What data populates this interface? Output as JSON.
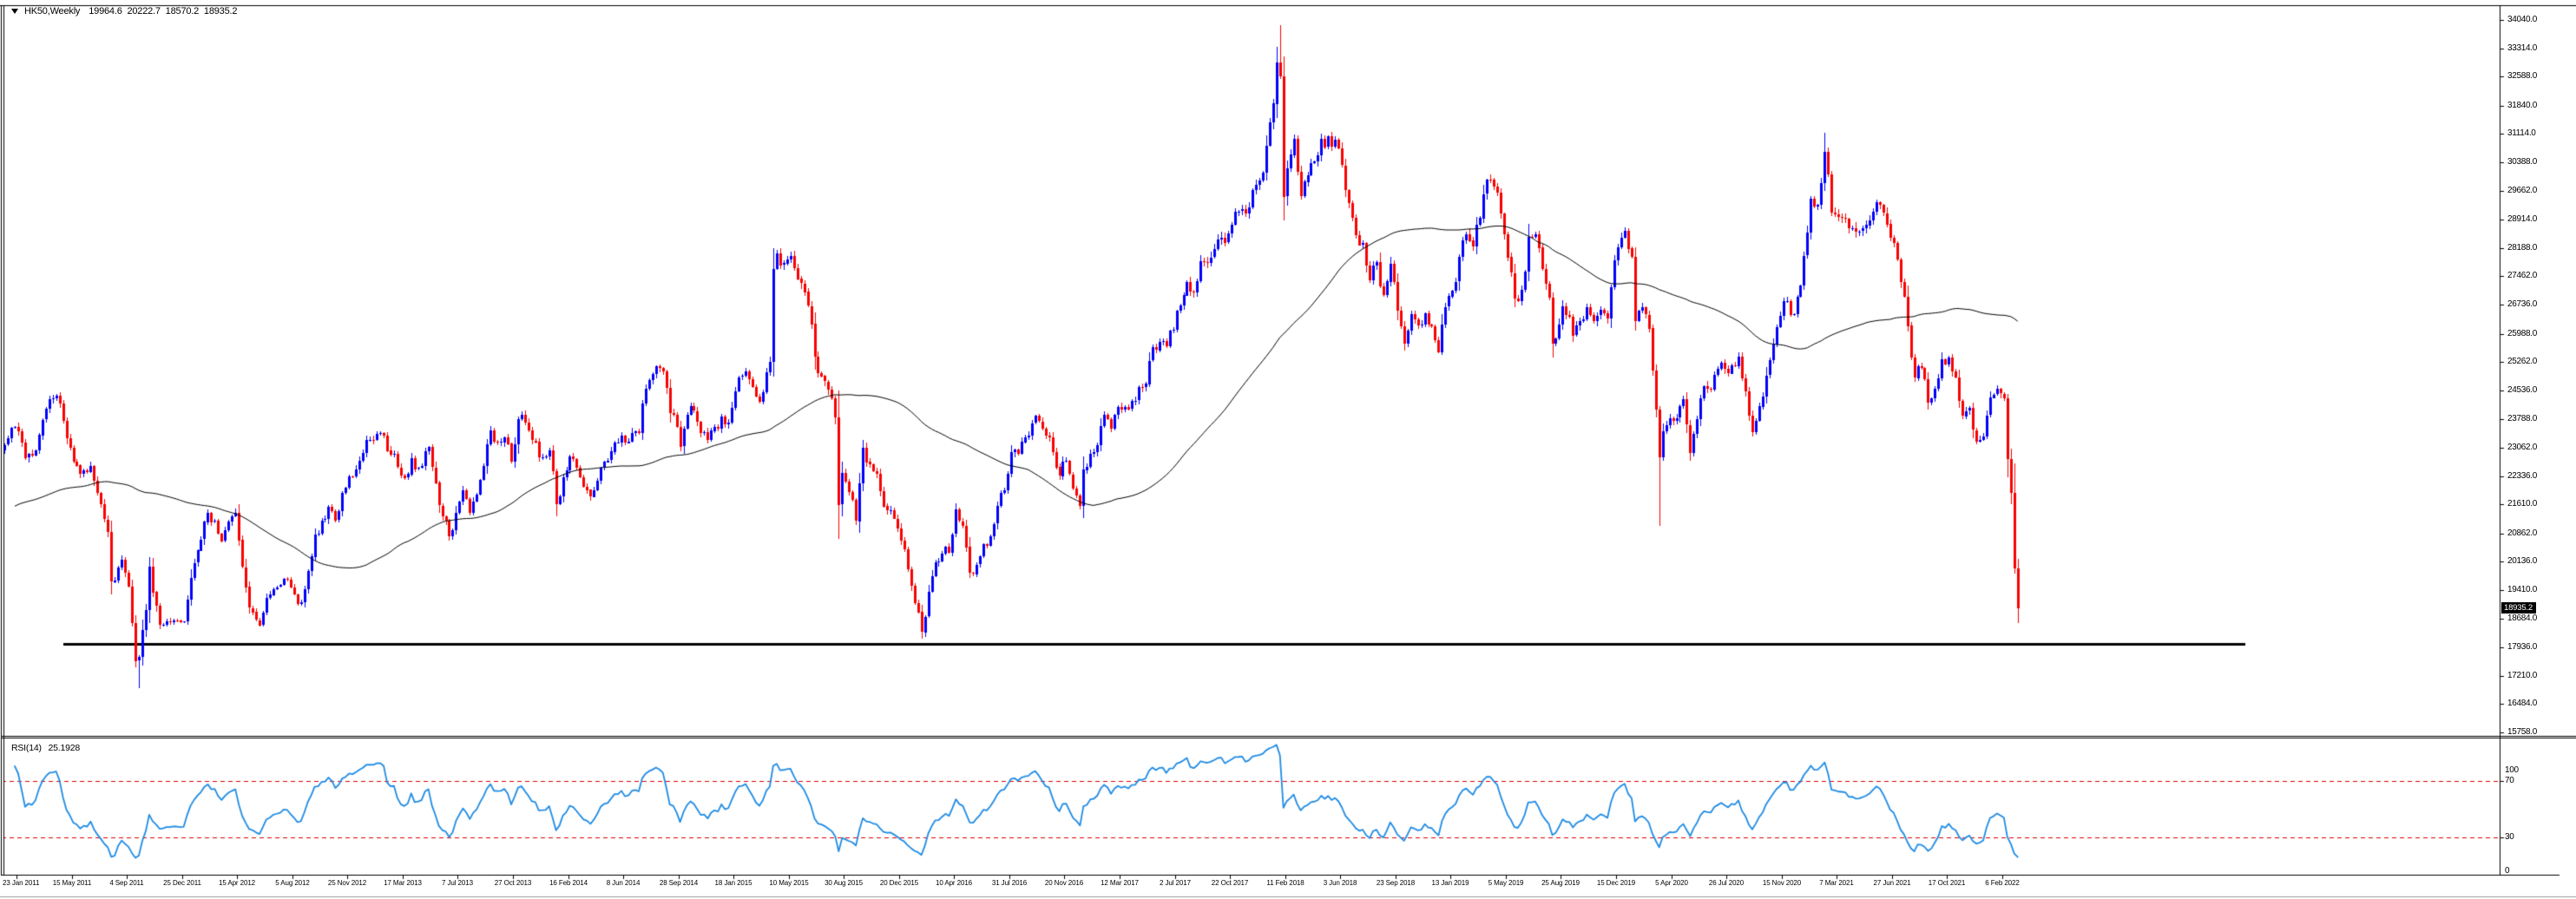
{
  "window": {
    "symbol": "HK50,Weekly",
    "ohlc": "19964.6 20222.7 18570.2 18935.2"
  },
  "price_axis": {
    "labels": [
      "34040.0",
      "33314.0",
      "32588.0",
      "31840.0",
      "31114.0",
      "30388.0",
      "29662.0",
      "28914.0",
      "28188.0",
      "27462.0",
      "26736.0",
      "25988.0",
      "25262.0",
      "24536.0",
      "23788.0",
      "23062.0",
      "22336.0",
      "21610.0",
      "20862.0",
      "20136.0",
      "19410.0",
      "18684.0",
      "17936.0",
      "17210.0",
      "16484.0",
      "15758.0"
    ],
    "current_price": "18935.2"
  },
  "time_axis": {
    "labels": [
      "23 Jan 2011",
      "15 May 2011",
      "4 Sep 2011",
      "25 Dec 2011",
      "15 Apr 2012",
      "5 Aug 2012",
      "25 Nov 2012",
      "17 Mar 2013",
      "7 Jul 2013",
      "27 Oct 2013",
      "16 Feb 2014",
      "8 Jun 2014",
      "28 Sep 2014",
      "18 Jan 2015",
      "10 May 2015",
      "30 Aug 2015",
      "20 Dec 2015",
      "10 Apr 2016",
      "31 Jul 2016",
      "20 Nov 2016",
      "12 Mar 2017",
      "2 Jul 2017",
      "22 Oct 2017",
      "11 Feb 2018",
      "3 Jun 2018",
      "23 Sep 2018",
      "13 Jan 2019",
      "5 May 2019",
      "25 Aug 2019",
      "15 Dec 2019",
      "5 Apr 2020",
      "26 Jul 2020",
      "15 Nov 2020",
      "7 Mar 2021",
      "27 Jun 2021",
      "17 Oct 2021",
      "6 Feb 2022"
    ]
  },
  "rsi_pane": {
    "label": "RSI(14)",
    "value": "25.1928",
    "scale_labels": [
      "100",
      "70",
      "30",
      "0"
    ]
  },
  "chart_data": {
    "type": "candlestick",
    "title": "HK50,Weekly 19964.6 20222.7 18570.2 18935.2",
    "instrument": "HK50",
    "timeframe": "Weekly",
    "x_axis": {
      "bar_interval": "1 week",
      "week0_date": "23 Jan 2011",
      "last_week_index": 581,
      "tick_every_weeks": 16,
      "tick_labels": [
        "23 Jan 2011",
        "15 May 2011",
        "4 Sep 2011",
        "25 Dec 2011",
        "15 Apr 2012",
        "5 Aug 2012",
        "25 Nov 2012",
        "17 Mar 2013",
        "7 Jul 2013",
        "27 Oct 2013",
        "16 Feb 2014",
        "8 Jun 2014",
        "28 Sep 2014",
        "18 Jan 2015",
        "10 May 2015",
        "30 Aug 2015",
        "20 Dec 2015",
        "10 Apr 2016",
        "31 Jul 2016",
        "20 Nov 2016",
        "12 Mar 2017",
        "2 Jul 2017",
        "22 Oct 2017",
        "11 Feb 2018",
        "3 Jun 2018",
        "23 Sep 2018",
        "13 Jan 2019",
        "5 May 2019",
        "25 Aug 2019",
        "15 Dec 2019",
        "5 Apr 2020",
        "26 Jul 2020",
        "15 Nov 2020",
        "7 Mar 2021",
        "27 Jun 2021",
        "17 Oct 2021",
        "6 Feb 2022"
      ]
    },
    "y_axis": {
      "min": 15758,
      "max": 34040,
      "grid": false,
      "tick_values": [
        34040,
        33314,
        32588,
        31840,
        31114,
        30388,
        29662,
        28914,
        28188,
        27462,
        26736,
        25988,
        25262,
        24536,
        23788,
        23062,
        22336,
        21610,
        20862,
        20136,
        19410,
        18684,
        17936,
        17210,
        16484,
        15758
      ]
    },
    "last_candle": {
      "open": 19964.6,
      "high": 20222.7,
      "low": 18570.2,
      "close": 18935.2
    },
    "pre_history_close_anchors": [
      [
        -110,
        13500
      ],
      [
        -104,
        13300
      ],
      [
        -96,
        12500
      ],
      [
        -88,
        16500
      ],
      [
        -80,
        18800
      ],
      [
        -72,
        20900
      ],
      [
        -64,
        21700
      ],
      [
        -56,
        21900
      ],
      [
        -52,
        20200
      ],
      [
        -46,
        20900
      ],
      [
        -40,
        21300
      ],
      [
        -34,
        19900
      ],
      [
        -28,
        20600
      ],
      [
        -22,
        21600
      ],
      [
        -16,
        22900
      ],
      [
        -10,
        23300
      ],
      [
        -5,
        23000
      ],
      [
        -2,
        23300
      ]
    ],
    "close_anchors": [
      [
        0,
        23600
      ],
      [
        3,
        22800
      ],
      [
        6,
        23000
      ],
      [
        10,
        24300
      ],
      [
        12,
        24400
      ],
      [
        15,
        23300
      ],
      [
        19,
        22400
      ],
      [
        22,
        22600
      ],
      [
        24,
        21900
      ],
      [
        27,
        20900
      ],
      [
        28,
        19620
      ],
      [
        30,
        20000
      ],
      [
        31,
        20200
      ],
      [
        33,
        19500
      ],
      [
        35,
        17600
      ],
      [
        36,
        17700
      ],
      [
        38,
        18900
      ],
      [
        39,
        20020
      ],
      [
        41,
        19000
      ],
      [
        42,
        18500
      ],
      [
        45,
        18600
      ],
      [
        47,
        18630
      ],
      [
        49,
        18600
      ],
      [
        52,
        20110
      ],
      [
        56,
        21400
      ],
      [
        60,
        20670
      ],
      [
        63,
        21300
      ],
      [
        64,
        21400
      ],
      [
        66,
        20000
      ],
      [
        68,
        18950
      ],
      [
        71,
        18500
      ],
      [
        73,
        19200
      ],
      [
        75,
        19440
      ],
      [
        79,
        19670
      ],
      [
        81,
        19300
      ],
      [
        83,
        19100
      ],
      [
        85,
        19900
      ],
      [
        87,
        20840
      ],
      [
        89,
        21200
      ],
      [
        91,
        21550
      ],
      [
        93,
        21200
      ],
      [
        95,
        21900
      ],
      [
        99,
        22500
      ],
      [
        102,
        23260
      ],
      [
        106,
        23440
      ],
      [
        109,
        22880
      ],
      [
        111,
        22560
      ],
      [
        113,
        22300
      ],
      [
        115,
        22800
      ],
      [
        117,
        22550
      ],
      [
        120,
        23080
      ],
      [
        123,
        21575
      ],
      [
        126,
        20803
      ],
      [
        128,
        21400
      ],
      [
        130,
        21970
      ],
      [
        132,
        21400
      ],
      [
        134,
        21860
      ],
      [
        136,
        22600
      ],
      [
        138,
        23500
      ],
      [
        140,
        23200
      ],
      [
        142,
        23340
      ],
      [
        144,
        22700
      ],
      [
        146,
        23800
      ],
      [
        148,
        23700
      ],
      [
        150,
        23250
      ],
      [
        153,
        22820
      ],
      [
        155,
        23000
      ],
      [
        157,
        21610
      ],
      [
        159,
        22300
      ],
      [
        161,
        22840
      ],
      [
        163,
        22550
      ],
      [
        165,
        22065
      ],
      [
        167,
        21800
      ],
      [
        169,
        22220
      ],
      [
        171,
        22700
      ],
      [
        173,
        22965
      ],
      [
        175,
        23200
      ],
      [
        177,
        23190
      ],
      [
        179,
        23450
      ],
      [
        181,
        23455
      ],
      [
        183,
        24580
      ],
      [
        185,
        24950
      ],
      [
        187,
        25100
      ],
      [
        189,
        24600
      ],
      [
        190,
        23960
      ],
      [
        192,
        23600
      ],
      [
        193,
        23090
      ],
      [
        195,
        23900
      ],
      [
        197,
        24000
      ],
      [
        199,
        23440
      ],
      [
        201,
        23250
      ],
      [
        203,
        23600
      ],
      [
        205,
        23860
      ],
      [
        207,
        23700
      ],
      [
        209,
        24510
      ],
      [
        211,
        24900
      ],
      [
        213,
        24820
      ],
      [
        215,
        24375
      ],
      [
        217,
        24490
      ],
      [
        219,
        25275
      ],
      [
        220,
        27650
      ],
      [
        221,
        28060
      ],
      [
        223,
        27800
      ],
      [
        225,
        27990
      ],
      [
        227,
        27400
      ],
      [
        228,
        27280
      ],
      [
        230,
        26700
      ],
      [
        232,
        25400
      ],
      [
        234,
        24900
      ],
      [
        236,
        24550
      ],
      [
        238,
        23850
      ],
      [
        239,
        21612
      ],
      [
        240,
        22410
      ],
      [
        242,
        21920
      ],
      [
        244,
        21186
      ],
      [
        246,
        23070
      ],
      [
        248,
        22640
      ],
      [
        250,
        22400
      ],
      [
        252,
        21560
      ],
      [
        254,
        21460
      ],
      [
        256,
        21000
      ],
      [
        258,
        20450
      ],
      [
        260,
        19520
      ],
      [
        261,
        19080
      ],
      [
        263,
        18320
      ],
      [
        265,
        19360
      ],
      [
        267,
        20120
      ],
      [
        269,
        20340
      ],
      [
        271,
        20370
      ],
      [
        273,
        21470
      ],
      [
        275,
        21067
      ],
      [
        277,
        19850
      ],
      [
        279,
        20060
      ],
      [
        281,
        20580
      ],
      [
        283,
        20790
      ],
      [
        285,
        21560
      ],
      [
        287,
        21960
      ],
      [
        289,
        22940
      ],
      [
        291,
        22910
      ],
      [
        293,
        23335
      ],
      [
        295,
        23690
      ],
      [
        297,
        23740
      ],
      [
        299,
        23370
      ],
      [
        301,
        22955
      ],
      [
        303,
        22340
      ],
      [
        305,
        22723
      ],
      [
        307,
        22020
      ],
      [
        309,
        21575
      ],
      [
        310,
        22500
      ],
      [
        312,
        22910
      ],
      [
        314,
        23130
      ],
      [
        316,
        23910
      ],
      [
        318,
        23550
      ],
      [
        320,
        24100
      ],
      [
        322,
        24110
      ],
      [
        324,
        24260
      ],
      [
        326,
        24615
      ],
      [
        328,
        24700
      ],
      [
        330,
        25640
      ],
      [
        332,
        25780
      ],
      [
        334,
        25670
      ],
      [
        336,
        26080
      ],
      [
        338,
        26710
      ],
      [
        340,
        27320
      ],
      [
        342,
        27050
      ],
      [
        344,
        27850
      ],
      [
        346,
        27810
      ],
      [
        348,
        28160
      ],
      [
        350,
        28460
      ],
      [
        352,
        28560
      ],
      [
        354,
        29120
      ],
      [
        356,
        29180
      ],
      [
        357,
        29074
      ],
      [
        359,
        29680
      ],
      [
        361,
        29920
      ],
      [
        363,
        30810
      ],
      [
        364,
        31412
      ],
      [
        365,
        31900
      ],
      [
        366,
        32960
      ],
      [
        367,
        32601
      ],
      [
        368,
        29507
      ],
      [
        370,
        30580
      ],
      [
        371,
        31000
      ],
      [
        373,
        29520
      ],
      [
        375,
        30060
      ],
      [
        377,
        30420
      ],
      [
        379,
        31000
      ],
      [
        381,
        31050
      ],
      [
        383,
        30960
      ],
      [
        385,
        30310
      ],
      [
        387,
        29340
      ],
      [
        389,
        28525
      ],
      [
        391,
        28315
      ],
      [
        393,
        27370
      ],
      [
        395,
        27820
      ],
      [
        397,
        26975
      ],
      [
        399,
        27790
      ],
      [
        401,
        26575
      ],
      [
        403,
        25730
      ],
      [
        405,
        26490
      ],
      [
        407,
        26185
      ],
      [
        409,
        26510
      ],
      [
        411,
        26170
      ],
      [
        413,
        25505
      ],
      [
        415,
        26670
      ],
      [
        417,
        27100
      ],
      [
        419,
        27950
      ],
      [
        421,
        28550
      ],
      [
        423,
        28230
      ],
      [
        425,
        28960
      ],
      [
        427,
        29940
      ],
      [
        429,
        29760
      ],
      [
        430,
        29605
      ],
      [
        432,
        28550
      ],
      [
        433,
        27950
      ],
      [
        435,
        26900
      ],
      [
        437,
        27120
      ],
      [
        439,
        28475
      ],
      [
        441,
        28550
      ],
      [
        443,
        27650
      ],
      [
        445,
        26920
      ],
      [
        446,
        25735
      ],
      [
        448,
        26230
      ],
      [
        449,
        26690
      ],
      [
        451,
        26435
      ],
      [
        452,
        25955
      ],
      [
        454,
        26310
      ],
      [
        456,
        26670
      ],
      [
        458,
        26325
      ],
      [
        460,
        26595
      ],
      [
        462,
        26390
      ],
      [
        464,
        27870
      ],
      [
        466,
        28455
      ],
      [
        467,
        28640
      ],
      [
        469,
        27950
      ],
      [
        470,
        26310
      ],
      [
        472,
        26660
      ],
      [
        474,
        26130
      ],
      [
        476,
        24033
      ],
      [
        477,
        22805
      ],
      [
        478,
        23484
      ],
      [
        480,
        23830
      ],
      [
        482,
        23830
      ],
      [
        484,
        24300
      ],
      [
        486,
        22930
      ],
      [
        488,
        23800
      ],
      [
        490,
        24645
      ],
      [
        492,
        24550
      ],
      [
        494,
        25090
      ],
      [
        496,
        25090
      ],
      [
        498,
        25185
      ],
      [
        500,
        25400
      ],
      [
        502,
        24505
      ],
      [
        504,
        23460
      ],
      [
        506,
        24120
      ],
      [
        508,
        24920
      ],
      [
        510,
        25715
      ],
      [
        512,
        26450
      ],
      [
        514,
        26835
      ],
      [
        516,
        26500
      ],
      [
        518,
        27230
      ],
      [
        520,
        28575
      ],
      [
        521,
        29450
      ],
      [
        523,
        29290
      ],
      [
        525,
        30645
      ],
      [
        526,
        30070
      ],
      [
        527,
        29100
      ],
      [
        529,
        28980
      ],
      [
        531,
        28940
      ],
      [
        533,
        28700
      ],
      [
        535,
        28610
      ],
      [
        537,
        28780
      ],
      [
        539,
        29125
      ],
      [
        541,
        29290
      ],
      [
        543,
        28800
      ],
      [
        545,
        28310
      ],
      [
        547,
        27320
      ],
      [
        549,
        26200
      ],
      [
        551,
        24850
      ],
      [
        553,
        25110
      ],
      [
        555,
        24220
      ],
      [
        557,
        24575
      ],
      [
        559,
        25330
      ],
      [
        561,
        25380
      ],
      [
        563,
        24870
      ],
      [
        565,
        23880
      ],
      [
        567,
        24080
      ],
      [
        569,
        23225
      ],
      [
        571,
        23350
      ],
      [
        572,
        23890
      ],
      [
        574,
        24430
      ],
      [
        575,
        24570
      ],
      [
        577,
        24330
      ],
      [
        578,
        22770
      ],
      [
        579,
        21905
      ],
      [
        580,
        19966
      ],
      [
        581,
        18935.2
      ]
    ],
    "wick_overrides": [
      [
        36,
        "low",
        16900
      ],
      [
        367,
        "high",
        33900
      ],
      [
        368,
        "low",
        28900
      ],
      [
        477,
        "low",
        21050
      ],
      [
        525,
        "high",
        31150
      ]
    ],
    "indicators": {
      "ma": {
        "type": "sma",
        "period": 75,
        "color": "#000000",
        "width": 1
      },
      "rsi": {
        "period": 14,
        "current": 25.1928,
        "levels": [
          70,
          30
        ],
        "scale": [
          0,
          100
        ],
        "color": "#1E8BE4",
        "level_color": "#DD0000",
        "level_style": "dashed"
      }
    },
    "objects": {
      "support_line": {
        "type": "horizontal_trendline",
        "price": 18030,
        "from_week": 14,
        "to_week": 647,
        "color": "#000000",
        "width": 3
      }
    },
    "colors": {
      "bull": "#0000FA",
      "bear": "#F80000",
      "background": "#FFFFFF",
      "frame": "#000000",
      "current_price_badge_bg": "#000000",
      "current_price_badge_text": "#FFFFFF"
    },
    "legend_position": "none"
  }
}
